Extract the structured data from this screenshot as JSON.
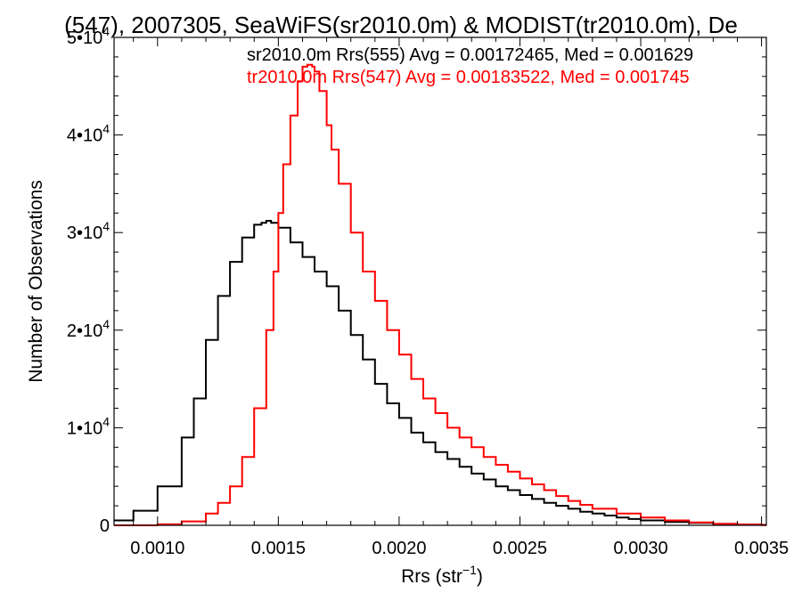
{
  "chart_data": {
    "type": "line",
    "title": "(547), 2007305, SeaWiFS(sr2010.0m) & MODIST(tr2010.0m), De",
    "xlabel_main": "Rrs (str",
    "xlabel_sup": "−1",
    "xlabel_close": ")",
    "ylabel": "Number of Observations",
    "xlim": [
      0.00082,
      0.00352
    ],
    "ylim": [
      0,
      50000
    ],
    "x_ticks": [
      0.001,
      0.0015,
      0.002,
      0.0025,
      0.003,
      0.0035
    ],
    "x_tick_labels": [
      "0.0010",
      "0.0015",
      "0.0020",
      "0.0025",
      "0.0030",
      "0.0035"
    ],
    "y_ticks": [
      {
        "value": 0,
        "base": "0",
        "exp": ""
      },
      {
        "value": 10000,
        "base": "1•10",
        "exp": "4"
      },
      {
        "value": 20000,
        "base": "2•10",
        "exp": "4"
      },
      {
        "value": 30000,
        "base": "3•10",
        "exp": "4"
      },
      {
        "value": 40000,
        "base": "4•10",
        "exp": "4"
      },
      {
        "value": 50000,
        "base": "5•10",
        "exp": "4"
      }
    ],
    "grid": false,
    "legend_position": "top-right",
    "series": [
      {
        "name": "sr2010.0m Rrs(555) Avg = 0.00172465, Med = 0.001629",
        "color": "#000000",
        "style": "step",
        "x": [
          0.00082,
          0.0009,
          0.001,
          0.0011,
          0.00115,
          0.0012,
          0.00125,
          0.0013,
          0.00135,
          0.0014,
          0.00143,
          0.00145,
          0.00147,
          0.0015,
          0.00155,
          0.0016,
          0.00165,
          0.0017,
          0.00175,
          0.0018,
          0.00185,
          0.0019,
          0.00195,
          0.002,
          0.00205,
          0.0021,
          0.00215,
          0.0022,
          0.00225,
          0.0023,
          0.00235,
          0.0024,
          0.00245,
          0.0025,
          0.00255,
          0.0026,
          0.00265,
          0.0027,
          0.00275,
          0.0028,
          0.00285,
          0.0029,
          0.00295,
          0.003,
          0.0031,
          0.0032,
          0.0033,
          0.0034,
          0.0035
        ],
        "y": [
          500,
          1500,
          4000,
          9000,
          13000,
          19000,
          23500,
          27000,
          29500,
          30800,
          31000,
          31200,
          31000,
          30500,
          29000,
          27500,
          26000,
          24500,
          22000,
          19500,
          17000,
          14500,
          12500,
          11000,
          9500,
          8500,
          7500,
          6800,
          6000,
          5300,
          4700,
          4000,
          3600,
          3100,
          2700,
          2300,
          2000,
          1700,
          1400,
          1200,
          1000,
          800,
          650,
          500,
          350,
          250,
          150,
          80,
          50
        ]
      },
      {
        "name": "tr2010.0m Rrs(547) Avg = 0.00183522, Med = 0.001745",
        "color": "#ff0000",
        "style": "step",
        "x": [
          0.00082,
          0.001,
          0.0011,
          0.0012,
          0.00125,
          0.0013,
          0.00135,
          0.0014,
          0.00145,
          0.00148,
          0.0015,
          0.00152,
          0.00155,
          0.00158,
          0.0016,
          0.00162,
          0.00164,
          0.00165,
          0.00167,
          0.0017,
          0.00172,
          0.00175,
          0.0018,
          0.00185,
          0.0019,
          0.00195,
          0.002,
          0.00205,
          0.0021,
          0.00215,
          0.0022,
          0.00225,
          0.0023,
          0.00235,
          0.0024,
          0.00245,
          0.0025,
          0.00255,
          0.0026,
          0.00265,
          0.0027,
          0.00275,
          0.0028,
          0.0029,
          0.003,
          0.0031,
          0.0032,
          0.0033,
          0.0034,
          0.0035
        ],
        "y": [
          0,
          100,
          400,
          1200,
          2300,
          4000,
          7000,
          12000,
          20000,
          26000,
          32000,
          37000,
          42000,
          45500,
          47000,
          47200,
          47000,
          46500,
          44500,
          41000,
          38500,
          35000,
          30000,
          26000,
          23000,
          20000,
          17500,
          15000,
          13000,
          11500,
          10000,
          9000,
          8000,
          7000,
          6200,
          5500,
          4800,
          4200,
          3600,
          3000,
          2500,
          2100,
          1700,
          1200,
          800,
          500,
          300,
          150,
          80,
          30
        ]
      }
    ]
  }
}
